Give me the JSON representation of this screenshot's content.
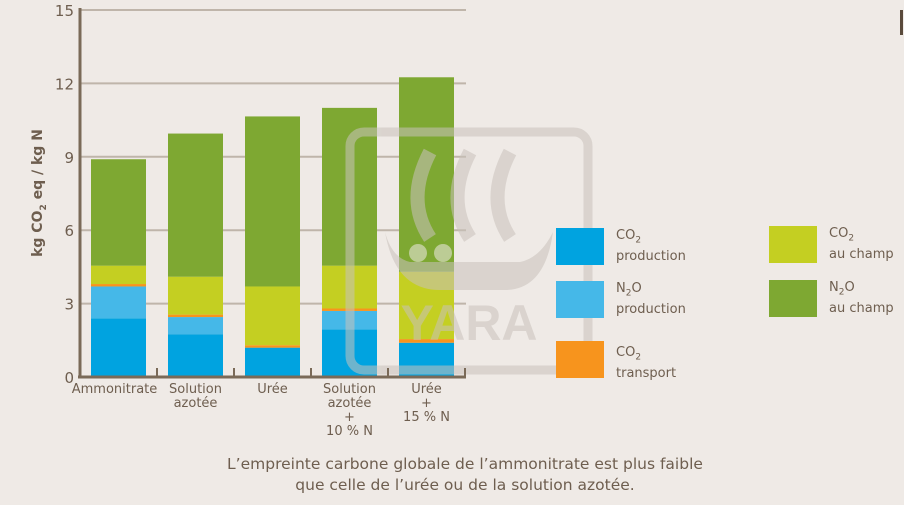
{
  "chart_data": {
    "type": "bar",
    "stacked": true,
    "title": "",
    "xlabel": "",
    "ylabel": "kg CO2 eq / kg N",
    "ylim": [
      0,
      15
    ],
    "yticks": [
      0,
      3,
      6,
      9,
      12,
      15
    ],
    "grid": true,
    "legend_position": "right",
    "categories": [
      "Ammonitrate",
      "Solution azotée",
      "Urée",
      "Solution azotée + 10 % N",
      "Urée + 15 % N"
    ],
    "category_lines": [
      [
        "Ammonitrate"
      ],
      [
        "Solution",
        "azotée"
      ],
      [
        "Urée"
      ],
      [
        "Solution",
        "azotée",
        "+",
        "10 % N"
      ],
      [
        "Urée",
        "+",
        "15 % N"
      ]
    ],
    "series": [
      {
        "name": "CO2 production",
        "color": "#00a3e0",
        "values": [
          2.4,
          1.75,
          1.2,
          1.95,
          1.4
        ]
      },
      {
        "name": "N2O production",
        "color": "#45b8e8",
        "values": [
          1.3,
          0.7,
          0.0,
          0.75,
          0.0
        ]
      },
      {
        "name": "CO2 transport",
        "color": "#f7941d",
        "values": [
          0.1,
          0.1,
          0.1,
          0.1,
          0.15
        ]
      },
      {
        "name": "CO2 au champ",
        "color": "#c4cf22",
        "values": [
          0.75,
          1.55,
          2.4,
          1.75,
          2.75
        ]
      },
      {
        "name": "N2O au champ",
        "color": "#7ea832",
        "values": [
          4.35,
          5.85,
          6.95,
          6.45,
          7.95
        ]
      }
    ],
    "totals": [
      8.9,
      9.95,
      10.65,
      11.0,
      12.25
    ],
    "annotations": [
      "L’empreinte carbone globale de l’ammonitrate est plus faible que celle de l’urée ou de la solution azotée."
    ]
  },
  "axis": {
    "ylabel_parts": {
      "a": "kg CO",
      "sub": "2",
      "b": " eq / kg N"
    },
    "ticks": [
      "0",
      "3",
      "6",
      "9",
      "12",
      "15"
    ]
  },
  "legend": {
    "items": [
      {
        "chem": "CO",
        "sub": "2",
        "chem_after": "",
        "label": "production",
        "color": "#00a3e0"
      },
      {
        "chem": "N",
        "sub": "2",
        "chem_after": "O",
        "label": "production",
        "color": "#45b8e8"
      },
      {
        "chem": "CO",
        "sub": "2",
        "chem_after": "",
        "label": "transport",
        "color": "#f7941d"
      },
      {
        "chem": "CO",
        "sub": "2",
        "chem_after": "",
        "label": "au champ",
        "color": "#c4cf22"
      },
      {
        "chem": "N",
        "sub": "2",
        "chem_after": "O",
        "label": "au champ",
        "color": "#7ea832"
      }
    ]
  },
  "caption": {
    "line1": "L’empreinte carbone globale de l’ammonitrate est plus faible",
    "line2": "que celle de l’urée ou de la solution azotée."
  },
  "watermark": {
    "text": "YARA"
  },
  "colors": {
    "axis": "#7a6a58",
    "grid": "#bfb5aa",
    "text": "#6e5e4f",
    "background": "#efeae6"
  }
}
